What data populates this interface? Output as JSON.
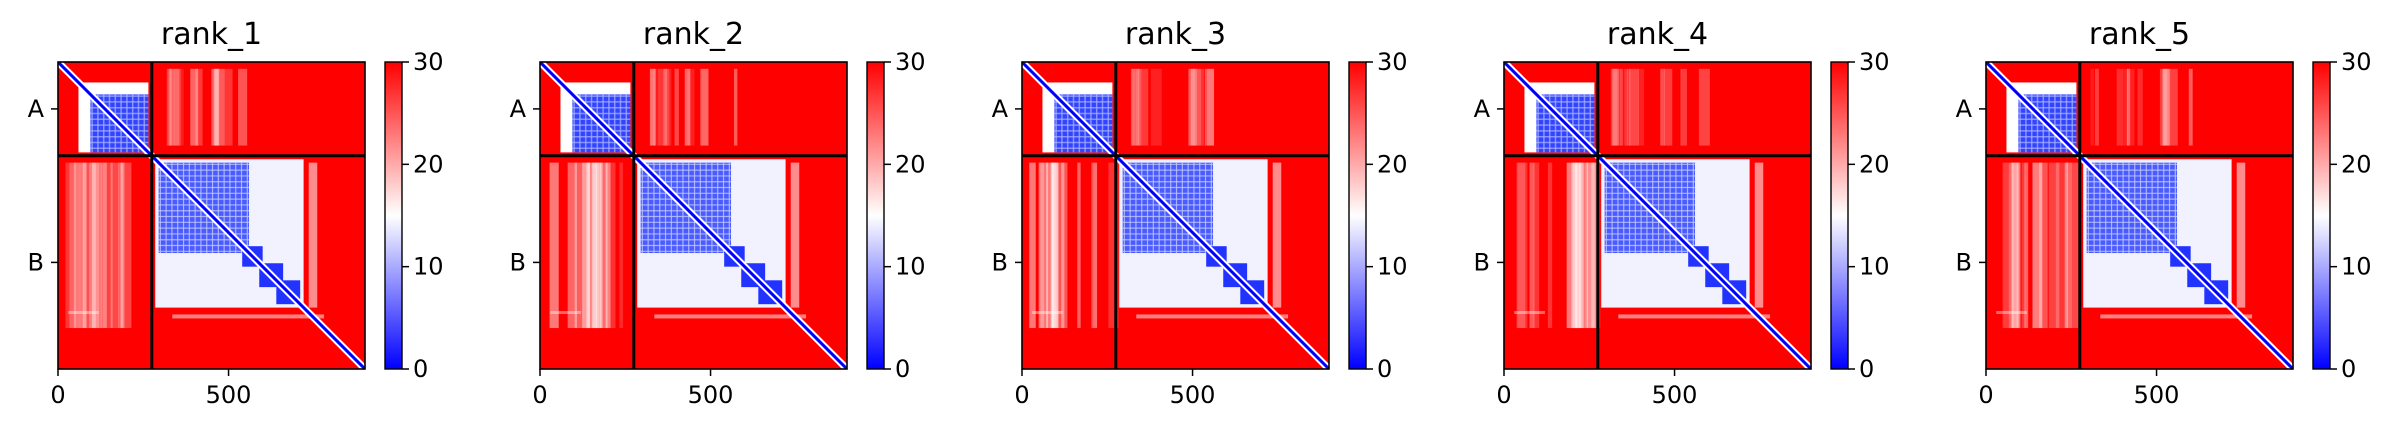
{
  "chart_data": [
    {
      "type": "heatmap",
      "title": "rank_1",
      "x_ticks": [
        "0",
        "500"
      ],
      "y_ticks": [
        "A",
        "B"
      ],
      "colorbar_ticks": [
        "0",
        "10",
        "20",
        "30"
      ],
      "colorbar_range": [
        0,
        30
      ],
      "colormap": "bwr",
      "chain_break": 275,
      "total_length": 900,
      "matrix_summary": {
        "intra_A": "low (blue)",
        "intra_B": "low (blue) with white off-diagonal",
        "inter_chain": "high (red) with faint white stripes"
      }
    },
    {
      "type": "heatmap",
      "title": "rank_2",
      "x_ticks": [
        "0",
        "500"
      ],
      "y_ticks": [
        "A",
        "B"
      ],
      "colorbar_ticks": [
        "0",
        "10",
        "20",
        "30"
      ],
      "colorbar_range": [
        0,
        30
      ],
      "colormap": "bwr",
      "chain_break": 275,
      "total_length": 900
    },
    {
      "type": "heatmap",
      "title": "rank_3",
      "x_ticks": [
        "0",
        "500"
      ],
      "y_ticks": [
        "A",
        "B"
      ],
      "colorbar_ticks": [
        "0",
        "10",
        "20",
        "30"
      ],
      "colorbar_range": [
        0,
        30
      ],
      "colormap": "bwr",
      "chain_break": 275,
      "total_length": 900
    },
    {
      "type": "heatmap",
      "title": "rank_4",
      "x_ticks": [
        "0",
        "500"
      ],
      "y_ticks": [
        "A",
        "B"
      ],
      "colorbar_ticks": [
        "0",
        "10",
        "20",
        "30"
      ],
      "colorbar_range": [
        0,
        30
      ],
      "colormap": "bwr",
      "chain_break": 275,
      "total_length": 900
    },
    {
      "type": "heatmap",
      "title": "rank_5",
      "x_ticks": [
        "0",
        "500"
      ],
      "y_ticks": [
        "A",
        "B"
      ],
      "colorbar_ticks": [
        "0",
        "10",
        "20",
        "30"
      ],
      "colorbar_range": [
        0,
        30
      ],
      "colormap": "bwr",
      "chain_break": 275,
      "total_length": 900
    }
  ],
  "colors": {
    "low": "#0000ff",
    "mid": "#ffffff",
    "high": "#ff0000",
    "separator": "#000000"
  }
}
